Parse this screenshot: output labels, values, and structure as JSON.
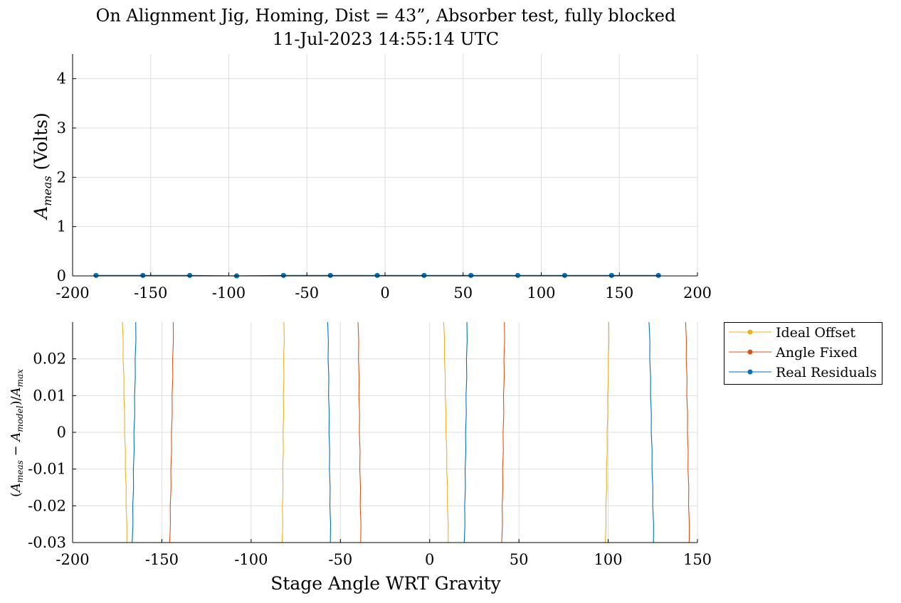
{
  "title": {
    "line1": "On Alignment Jig, Homing, Dist = 43”, Absorber test, fully blocked",
    "line2": "11-Jul-2023 14:55:14 UTC"
  },
  "colors": {
    "ideal": "#EDB120",
    "angle": "#D95319",
    "real": "#0072BD",
    "grid": "#dedede",
    "axis": "#000000"
  },
  "chart_data": [
    {
      "type": "line",
      "ylabel": "A_meas (Volts)",
      "xlim": [
        -200,
        200
      ],
      "ylim": [
        0,
        4.5
      ],
      "xticks": [
        "-200",
        "-150",
        "-100",
        "-50",
        "0",
        "50",
        "100",
        "150",
        "200"
      ],
      "yticks": [
        "0",
        "1",
        "2",
        "3",
        "4"
      ],
      "grid": true,
      "series": [
        {
          "color_key": "real",
          "marker": "circle",
          "x": [
            -185,
            -155,
            -125,
            -95,
            -65,
            -35,
            -5,
            25,
            55,
            85,
            115,
            145,
            175
          ],
          "y": [
            0.01,
            0.01,
            0.01,
            0.0,
            0.01,
            0.01,
            0.01,
            0.01,
            0.01,
            0.01,
            0.01,
            0.01,
            0.01
          ]
        }
      ]
    },
    {
      "type": "line",
      "xlabel": "Stage Angle WRT Gravity",
      "ylabel": "(A_meas − A_model)/A_max",
      "xlim": [
        -200,
        150
      ],
      "ylim": [
        -0.03,
        0.03
      ],
      "xticks": [
        "-200",
        "-150",
        "-100",
        "-50",
        "0",
        "50",
        "100",
        "150"
      ],
      "yticks": [
        "-0.03",
        "-0.02",
        "-0.01",
        "0",
        "0.01",
        "0.02"
      ],
      "grid": true,
      "legend": {
        "placement": "outside-right-top",
        "entries": [
          "Ideal Offset",
          "Angle Fixed",
          "Real Residuals"
        ]
      },
      "series": [
        {
          "name": "Ideal Offset",
          "color_key": "ideal",
          "segments": [
            [
              -172,
              0.03,
              -169.5,
              -0.03
            ],
            [
              -81.5,
              0.03,
              -82.5,
              -0.03
            ],
            [
              8,
              0.03,
              10.5,
              -0.03
            ],
            [
              100.5,
              0.03,
              98.5,
              -0.03
            ]
          ]
        },
        {
          "name": "Angle Fixed",
          "color_key": "angle",
          "segments": [
            [
              -143.5,
              0.03,
              -145.5,
              -0.03
            ],
            [
              -40,
              0.03,
              -38.5,
              -0.03
            ],
            [
              42,
              0.03,
              40.5,
              -0.03
            ],
            [
              143.5,
              0.03,
              145.5,
              -0.03
            ]
          ]
        },
        {
          "name": "Real Residuals",
          "color_key": "real",
          "segments": [
            [
              -164.5,
              0.03,
              -166.5,
              -0.03
            ],
            [
              -57,
              0.03,
              -55.5,
              -0.03
            ],
            [
              21,
              0.03,
              19.5,
              -0.03
            ],
            [
              123,
              0.03,
              125.5,
              -0.03
            ]
          ]
        }
      ]
    }
  ]
}
